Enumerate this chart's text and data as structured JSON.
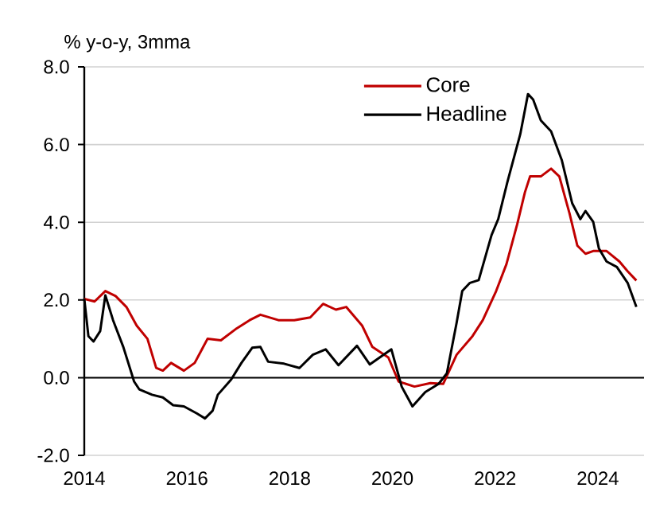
{
  "chart_data": {
    "type": "line",
    "ylabel": "% y-o-y, 3mma",
    "xlim": [
      2014,
      2024.9
    ],
    "xticks": [
      2014,
      2016,
      2018,
      2020,
      2022,
      2024
    ],
    "ylim": [
      -2,
      8
    ],
    "yticks": [
      {
        "value": -2,
        "label": "-2.0"
      },
      {
        "value": 0,
        "label": "0.0"
      },
      {
        "value": 2,
        "label": "2.0"
      },
      {
        "value": 4,
        "label": "4.0"
      },
      {
        "value": 6,
        "label": "6.0"
      },
      {
        "value": 8,
        "label": "8.0"
      }
    ],
    "grid": "y",
    "legend": "top right",
    "line_style": "solid",
    "marker": "none",
    "series": [
      {
        "name": "Core",
        "color": "#c00000",
        "x": [
          2014.0,
          2014.2,
          2014.41,
          2014.61,
          2014.82,
          2015.02,
          2015.23,
          2015.4,
          2015.53,
          2015.69,
          2015.94,
          2016.15,
          2016.4,
          2016.66,
          2016.97,
          2017.22,
          2017.43,
          2017.78,
          2018.09,
          2018.4,
          2018.65,
          2018.9,
          2019.1,
          2019.41,
          2019.61,
          2019.92,
          2020.12,
          2020.43,
          2020.74,
          2020.99,
          2021.25,
          2021.56,
          2021.76,
          2022.02,
          2022.22,
          2022.43,
          2022.58,
          2022.68,
          2022.89,
          2023.09,
          2023.25,
          2023.45,
          2023.6,
          2023.76,
          2023.91,
          2024.17,
          2024.42,
          2024.58,
          2024.75
        ],
        "values": [
          2.03,
          1.96,
          2.23,
          2.1,
          1.82,
          1.34,
          1.0,
          0.25,
          0.18,
          0.38,
          0.18,
          0.38,
          1.0,
          0.96,
          1.27,
          1.48,
          1.62,
          1.48,
          1.48,
          1.55,
          1.9,
          1.75,
          1.82,
          1.34,
          0.79,
          0.52,
          -0.1,
          -0.23,
          -0.14,
          -0.16,
          0.59,
          1.07,
          1.48,
          2.23,
          2.92,
          3.95,
          4.77,
          5.18,
          5.18,
          5.38,
          5.18,
          4.22,
          3.4,
          3.19,
          3.26,
          3.26,
          2.99,
          2.74,
          2.5
        ]
      },
      {
        "name": "Headline",
        "color": "#000000",
        "x": [
          2014.0,
          2014.08,
          2014.18,
          2014.31,
          2014.41,
          2014.56,
          2014.76,
          2014.97,
          2015.07,
          2015.32,
          2015.53,
          2015.73,
          2015.94,
          2016.19,
          2016.35,
          2016.5,
          2016.6,
          2016.86,
          2017.06,
          2017.27,
          2017.43,
          2017.58,
          2017.89,
          2018.19,
          2018.45,
          2018.7,
          2018.95,
          2019.31,
          2019.56,
          2019.98,
          2020.18,
          2020.39,
          2020.64,
          2020.9,
          2021.06,
          2021.25,
          2021.36,
          2021.51,
          2021.68,
          2021.93,
          2022.06,
          2022.24,
          2022.49,
          2022.64,
          2022.74,
          2022.89,
          2023.09,
          2023.3,
          2023.5,
          2023.66,
          2023.76,
          2023.91,
          2024.02,
          2024.17,
          2024.37,
          2024.58,
          2024.75
        ],
        "values": [
          2.03,
          1.07,
          0.93,
          1.2,
          2.12,
          1.48,
          0.79,
          -0.1,
          -0.3,
          -0.44,
          -0.51,
          -0.71,
          -0.74,
          -0.92,
          -1.05,
          -0.85,
          -0.44,
          -0.05,
          0.38,
          0.77,
          0.79,
          0.41,
          0.36,
          0.25,
          0.59,
          0.73,
          0.32,
          0.82,
          0.34,
          0.73,
          -0.23,
          -0.74,
          -0.37,
          -0.16,
          0.11,
          1.41,
          2.23,
          2.44,
          2.51,
          3.67,
          4.08,
          5.04,
          6.27,
          7.3,
          7.16,
          6.62,
          6.34,
          5.59,
          4.49,
          4.08,
          4.29,
          4.01,
          3.33,
          2.99,
          2.85,
          2.44,
          1.82
        ]
      }
    ]
  }
}
